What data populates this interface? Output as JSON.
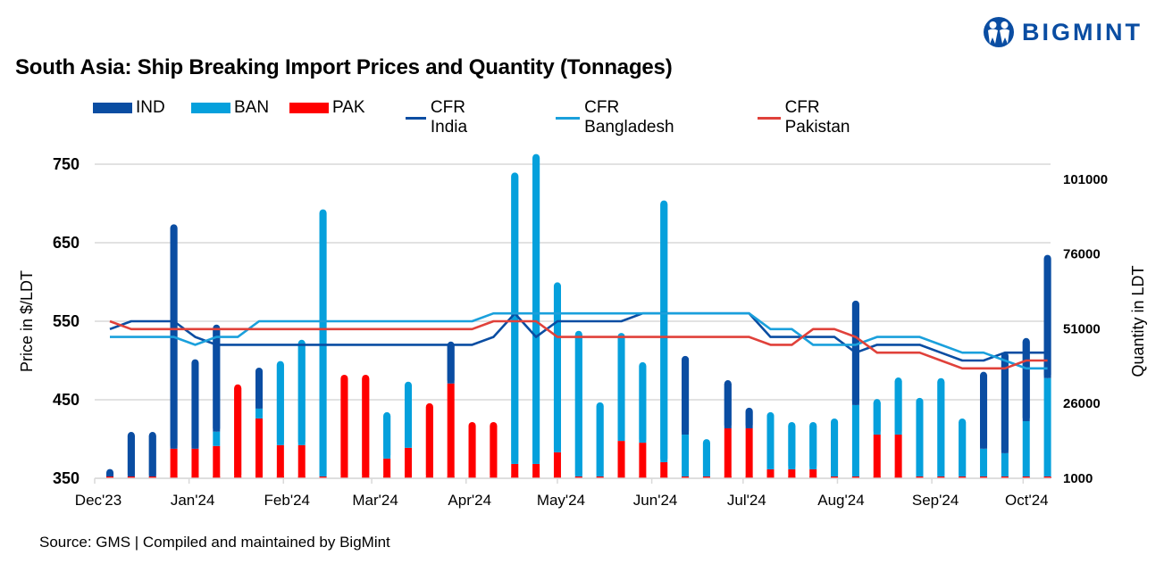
{
  "title": "South Asia: Ship Breaking Import Prices and Quantity (Tonnages)",
  "logo": {
    "text": "BIGMINT",
    "icon": "bigmint-people-icon",
    "color": "#0a4da2"
  },
  "source": "Source: GMS | Compiled and maintained by BigMint",
  "chart_data": {
    "type": "bar+line",
    "title": "South Asia: Ship Breaking Import Prices and Quantity (Tonnages)",
    "stacked_bars": true,
    "grid": "horizontal",
    "legend_placement": "top-left",
    "x": [
      "2023-12-06",
      "2023-12-13",
      "2023-12-20",
      "2023-12-27",
      "2024-01-03",
      "2024-01-10",
      "2024-01-17",
      "2024-01-24",
      "2024-01-31",
      "2024-02-07",
      "2024-02-14",
      "2024-02-21",
      "2024-02-28",
      "2024-03-06",
      "2024-03-13",
      "2024-03-20",
      "2024-03-27",
      "2024-04-03",
      "2024-04-10",
      "2024-04-17",
      "2024-04-24",
      "2024-05-01",
      "2024-05-08",
      "2024-05-15",
      "2024-05-22",
      "2024-05-29",
      "2024-06-05",
      "2024-06-12",
      "2024-06-19",
      "2024-06-26",
      "2024-07-03",
      "2024-07-10",
      "2024-07-17",
      "2024-07-24",
      "2024-07-31",
      "2024-08-07",
      "2024-08-14",
      "2024-08-21",
      "2024-08-28",
      "2024-09-04",
      "2024-09-11",
      "2024-09-18",
      "2024-09-25",
      "2024-10-02",
      "2024-10-09"
    ],
    "xticks": [
      {
        "date": "2023-12-01",
        "label": "Dec'23"
      },
      {
        "date": "2024-01-01",
        "label": "Jan'24"
      },
      {
        "date": "2024-02-01",
        "label": "Feb'24"
      },
      {
        "date": "2024-03-01",
        "label": "Mar'24"
      },
      {
        "date": "2024-04-01",
        "label": "Apr'24"
      },
      {
        "date": "2024-05-01",
        "label": "May'24"
      },
      {
        "date": "2024-06-01",
        "label": "Jun'24"
      },
      {
        "date": "2024-07-01",
        "label": "Jul'24"
      },
      {
        "date": "2024-08-01",
        "label": "Aug'24"
      },
      {
        "date": "2024-09-01",
        "label": "Sep'24"
      },
      {
        "date": "2024-10-01",
        "label": "Oct'24"
      }
    ],
    "xlim": [
      "2023-12-01",
      "2024-10-10"
    ],
    "y_left": {
      "label": "Price in $/LDT",
      "lim": [
        350,
        750
      ],
      "ticks": [
        350,
        450,
        550,
        650,
        750
      ]
    },
    "y_right": {
      "label": "Quantity in LDT",
      "lim": [
        1000,
        106000
      ],
      "ticks": [
        1000,
        26000,
        51000,
        76000,
        101000
      ]
    },
    "bar_series": [
      {
        "name": "PAK",
        "color": "#ff0000",
        "axis": "right",
        "values": [
          0,
          0,
          0,
          9900,
          9900,
          10800,
          31400,
          20000,
          11100,
          11100,
          0,
          34600,
          34600,
          6600,
          10200,
          25100,
          31700,
          18800,
          18800,
          4800,
          4800,
          8700,
          0,
          0,
          12500,
          11900,
          5400,
          0,
          0,
          16700,
          16700,
          3000,
          3000,
          3000,
          0,
          0,
          14600,
          14600,
          0,
          0,
          0,
          0,
          0,
          0,
          0
        ]
      },
      {
        "name": "BAN",
        "color": "#05a0dc",
        "axis": "right",
        "values": [
          0,
          0,
          0,
          0,
          0,
          4800,
          0,
          3300,
          28100,
          35200,
          89900,
          0,
          0,
          15500,
          22100,
          0,
          0,
          0,
          0,
          97400,
          103600,
          56800,
          49300,
          25400,
          36100,
          26900,
          87500,
          14600,
          13100,
          0,
          0,
          19100,
          15800,
          15800,
          20000,
          24500,
          11900,
          19100,
          26900,
          33500,
          20000,
          9900,
          8400,
          19100,
          33500
        ]
      },
      {
        "name": "IND",
        "color": "#0a4da2",
        "axis": "right",
        "values": [
          3100,
          15500,
          15500,
          75000,
          29900,
          35800,
          0,
          13700,
          0,
          0,
          0,
          0,
          0,
          0,
          0,
          0,
          14000,
          0,
          0,
          0,
          0,
          0,
          0,
          0,
          0,
          0,
          0,
          26300,
          0,
          16100,
          6900,
          0,
          0,
          0,
          0,
          34900,
          0,
          0,
          0,
          0,
          0,
          25700,
          33800,
          27800,
          41200
        ]
      }
    ],
    "line_series": [
      {
        "name": "CFR India",
        "color": "#0a4da2",
        "axis": "left",
        "values": [
          540,
          550,
          550,
          550,
          530,
          520,
          520,
          520,
          520,
          520,
          520,
          520,
          520,
          520,
          520,
          520,
          520,
          520,
          530,
          560,
          530,
          550,
          550,
          550,
          550,
          560,
          560,
          560,
          560,
          560,
          560,
          530,
          530,
          530,
          530,
          510,
          520,
          520,
          520,
          510,
          500,
          500,
          510,
          510,
          510
        ]
      },
      {
        "name": "CFR Bangladesh",
        "color": "#1aa0dc",
        "axis": "left",
        "values": [
          530,
          530,
          530,
          530,
          520,
          530,
          530,
          550,
          550,
          550,
          550,
          550,
          550,
          550,
          550,
          550,
          550,
          550,
          560,
          560,
          560,
          560,
          560,
          560,
          560,
          560,
          560,
          560,
          560,
          560,
          560,
          540,
          540,
          520,
          520,
          520,
          530,
          530,
          530,
          520,
          510,
          510,
          500,
          490,
          490
        ]
      },
      {
        "name": "CFR Pakistan",
        "color": "#e0413a",
        "axis": "left",
        "values": [
          550,
          540,
          540,
          540,
          540,
          540,
          540,
          540,
          540,
          540,
          540,
          540,
          540,
          540,
          540,
          540,
          540,
          540,
          550,
          550,
          550,
          530,
          530,
          530,
          530,
          530,
          530,
          530,
          530,
          530,
          530,
          520,
          520,
          540,
          540,
          530,
          510,
          510,
          510,
          500,
          490,
          490,
          490,
          500,
          500
        ]
      }
    ],
    "legend": [
      {
        "name": "IND",
        "kind": "bar",
        "color": "#0a4da2"
      },
      {
        "name": "BAN",
        "kind": "bar",
        "color": "#05a0dc"
      },
      {
        "name": "PAK",
        "kind": "bar",
        "color": "#ff0000"
      },
      {
        "name": "CFR India",
        "kind": "line",
        "color": "#0a4da2"
      },
      {
        "name": "CFR Bangladesh",
        "kind": "line",
        "color": "#1aa0dc"
      },
      {
        "name": "CFR Pakistan",
        "kind": "line",
        "color": "#e0413a"
      }
    ]
  }
}
